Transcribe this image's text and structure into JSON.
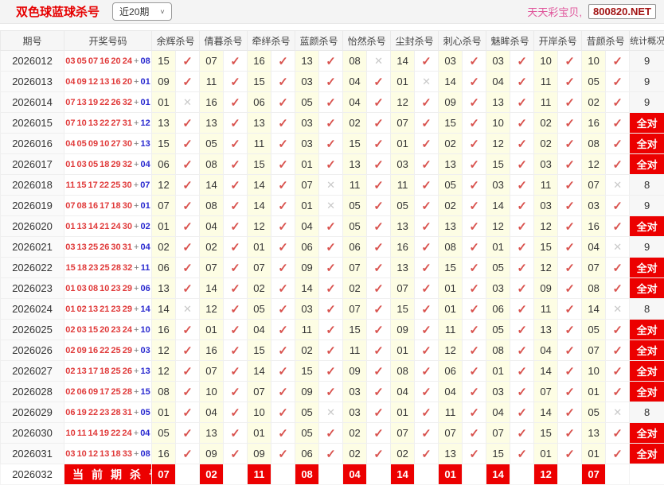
{
  "topbar": {
    "title": "双色球蓝球杀号",
    "range_value": "近20期",
    "chevron": "˅",
    "site_name": "天天彩宝贝,",
    "site_domain": "800820.NET"
  },
  "colors": {
    "accent_red": "#ec0000",
    "title_red": "#e60000",
    "check_red": "#d9534f",
    "miss_gray": "#c9c9c9",
    "ball_red": "#e03a3a",
    "ball_blue": "#2b2bd0",
    "kill_cell_yellow": "#fdfde4"
  },
  "marks": {
    "hit": "✓",
    "miss": "✕"
  },
  "table": {
    "headers": {
      "period": "期号",
      "numbers": "开奖号码",
      "stat": "统计概况",
      "experts": [
        "余辉杀号",
        "倩暮杀号",
        "牵绊杀号",
        "蓝颜杀号",
        "怡然杀号",
        "尘封杀号",
        "刺心杀号",
        "魅眸杀号",
        "开岸杀号",
        "昔颜杀号"
      ]
    },
    "all_correct_label": "全对",
    "plus_sign": "+",
    "rows": [
      {
        "period": "2026012",
        "reds": "03 05 07 16 20 24",
        "blue": "08",
        "kills": [
          [
            "15",
            1
          ],
          [
            "07",
            1
          ],
          [
            "16",
            1
          ],
          [
            "13",
            1
          ],
          [
            "08",
            0
          ],
          [
            "14",
            1
          ],
          [
            "03",
            1
          ],
          [
            "03",
            1
          ],
          [
            "10",
            1
          ],
          [
            "10",
            1
          ]
        ],
        "stat": "9"
      },
      {
        "period": "2026013",
        "reds": "04 09 12 13 16 20",
        "blue": "01",
        "kills": [
          [
            "09",
            1
          ],
          [
            "11",
            1
          ],
          [
            "15",
            1
          ],
          [
            "03",
            1
          ],
          [
            "04",
            1
          ],
          [
            "01",
            0
          ],
          [
            "14",
            1
          ],
          [
            "04",
            1
          ],
          [
            "11",
            1
          ],
          [
            "05",
            1
          ]
        ],
        "stat": "9"
      },
      {
        "period": "2026014",
        "reds": "07 13 19 22 26 32",
        "blue": "01",
        "kills": [
          [
            "01",
            0
          ],
          [
            "16",
            1
          ],
          [
            "06",
            1
          ],
          [
            "05",
            1
          ],
          [
            "04",
            1
          ],
          [
            "12",
            1
          ],
          [
            "09",
            1
          ],
          [
            "13",
            1
          ],
          [
            "11",
            1
          ],
          [
            "02",
            1
          ]
        ],
        "stat": "9"
      },
      {
        "period": "2026015",
        "reds": "07 10 13 22 27 31",
        "blue": "12",
        "kills": [
          [
            "13",
            1
          ],
          [
            "13",
            1
          ],
          [
            "13",
            1
          ],
          [
            "03",
            1
          ],
          [
            "02",
            1
          ],
          [
            "07",
            1
          ],
          [
            "15",
            1
          ],
          [
            "10",
            1
          ],
          [
            "02",
            1
          ],
          [
            "16",
            1
          ]
        ],
        "stat": "全对"
      },
      {
        "period": "2026016",
        "reds": "04 05 09 10 27 30",
        "blue": "13",
        "kills": [
          [
            "15",
            1
          ],
          [
            "05",
            1
          ],
          [
            "11",
            1
          ],
          [
            "03",
            1
          ],
          [
            "15",
            1
          ],
          [
            "01",
            1
          ],
          [
            "02",
            1
          ],
          [
            "12",
            1
          ],
          [
            "02",
            1
          ],
          [
            "08",
            1
          ]
        ],
        "stat": "全对"
      },
      {
        "period": "2026017",
        "reds": "01 03 05 18 29 32",
        "blue": "04",
        "kills": [
          [
            "06",
            1
          ],
          [
            "08",
            1
          ],
          [
            "15",
            1
          ],
          [
            "01",
            1
          ],
          [
            "13",
            1
          ],
          [
            "03",
            1
          ],
          [
            "13",
            1
          ],
          [
            "15",
            1
          ],
          [
            "03",
            1
          ],
          [
            "12",
            1
          ]
        ],
        "stat": "全对"
      },
      {
        "period": "2026018",
        "reds": "11 15 17 22 25 30",
        "blue": "07",
        "kills": [
          [
            "12",
            1
          ],
          [
            "14",
            1
          ],
          [
            "14",
            1
          ],
          [
            "07",
            0
          ],
          [
            "11",
            1
          ],
          [
            "11",
            1
          ],
          [
            "05",
            1
          ],
          [
            "03",
            1
          ],
          [
            "11",
            1
          ],
          [
            "07",
            0
          ]
        ],
        "stat": "8"
      },
      {
        "period": "2026019",
        "reds": "07 08 16 17 18 30",
        "blue": "01",
        "kills": [
          [
            "07",
            1
          ],
          [
            "08",
            1
          ],
          [
            "14",
            1
          ],
          [
            "01",
            0
          ],
          [
            "05",
            1
          ],
          [
            "05",
            1
          ],
          [
            "02",
            1
          ],
          [
            "14",
            1
          ],
          [
            "03",
            1
          ],
          [
            "03",
            1
          ]
        ],
        "stat": "9"
      },
      {
        "period": "2026020",
        "reds": "01 13 14 21 24 30",
        "blue": "02",
        "kills": [
          [
            "01",
            1
          ],
          [
            "04",
            1
          ],
          [
            "12",
            1
          ],
          [
            "04",
            1
          ],
          [
            "05",
            1
          ],
          [
            "13",
            1
          ],
          [
            "13",
            1
          ],
          [
            "12",
            1
          ],
          [
            "12",
            1
          ],
          [
            "16",
            1
          ]
        ],
        "stat": "全对"
      },
      {
        "period": "2026021",
        "reds": "03 13 25 26 30 31",
        "blue": "04",
        "kills": [
          [
            "02",
            1
          ],
          [
            "02",
            1
          ],
          [
            "01",
            1
          ],
          [
            "06",
            1
          ],
          [
            "06",
            1
          ],
          [
            "16",
            1
          ],
          [
            "08",
            1
          ],
          [
            "01",
            1
          ],
          [
            "15",
            1
          ],
          [
            "04",
            0
          ]
        ],
        "stat": "9"
      },
      {
        "period": "2026022",
        "reds": "15 18 23 25 28 32",
        "blue": "11",
        "kills": [
          [
            "06",
            1
          ],
          [
            "07",
            1
          ],
          [
            "07",
            1
          ],
          [
            "09",
            1
          ],
          [
            "07",
            1
          ],
          [
            "13",
            1
          ],
          [
            "15",
            1
          ],
          [
            "05",
            1
          ],
          [
            "12",
            1
          ],
          [
            "07",
            1
          ]
        ],
        "stat": "全对"
      },
      {
        "period": "2026023",
        "reds": "01 03 08 10 23 29",
        "blue": "06",
        "kills": [
          [
            "13",
            1
          ],
          [
            "14",
            1
          ],
          [
            "02",
            1
          ],
          [
            "14",
            1
          ],
          [
            "02",
            1
          ],
          [
            "07",
            1
          ],
          [
            "01",
            1
          ],
          [
            "03",
            1
          ],
          [
            "09",
            1
          ],
          [
            "08",
            1
          ]
        ],
        "stat": "全对"
      },
      {
        "period": "2026024",
        "reds": "01 02 13 21 23 29",
        "blue": "14",
        "kills": [
          [
            "14",
            0
          ],
          [
            "12",
            1
          ],
          [
            "05",
            1
          ],
          [
            "03",
            1
          ],
          [
            "07",
            1
          ],
          [
            "15",
            1
          ],
          [
            "01",
            1
          ],
          [
            "06",
            1
          ],
          [
            "11",
            1
          ],
          [
            "14",
            0
          ]
        ],
        "stat": "8"
      },
      {
        "period": "2026025",
        "reds": "02 03 15 20 23 24",
        "blue": "10",
        "kills": [
          [
            "16",
            1
          ],
          [
            "01",
            1
          ],
          [
            "04",
            1
          ],
          [
            "11",
            1
          ],
          [
            "15",
            1
          ],
          [
            "09",
            1
          ],
          [
            "11",
            1
          ],
          [
            "05",
            1
          ],
          [
            "13",
            1
          ],
          [
            "05",
            1
          ]
        ],
        "stat": "全对"
      },
      {
        "period": "2026026",
        "reds": "02 09 16 22 25 29",
        "blue": "03",
        "kills": [
          [
            "12",
            1
          ],
          [
            "16",
            1
          ],
          [
            "15",
            1
          ],
          [
            "02",
            1
          ],
          [
            "11",
            1
          ],
          [
            "01",
            1
          ],
          [
            "12",
            1
          ],
          [
            "08",
            1
          ],
          [
            "04",
            1
          ],
          [
            "07",
            1
          ]
        ],
        "stat": "全对"
      },
      {
        "period": "2026027",
        "reds": "02 13 17 18 25 26",
        "blue": "13",
        "kills": [
          [
            "12",
            1
          ],
          [
            "07",
            1
          ],
          [
            "14",
            1
          ],
          [
            "15",
            1
          ],
          [
            "09",
            1
          ],
          [
            "08",
            1
          ],
          [
            "06",
            1
          ],
          [
            "01",
            1
          ],
          [
            "14",
            1
          ],
          [
            "10",
            1
          ]
        ],
        "stat": "全对"
      },
      {
        "period": "2026028",
        "reds": "02 06 09 17 25 28",
        "blue": "15",
        "kills": [
          [
            "08",
            1
          ],
          [
            "10",
            1
          ],
          [
            "07",
            1
          ],
          [
            "09",
            1
          ],
          [
            "03",
            1
          ],
          [
            "04",
            1
          ],
          [
            "04",
            1
          ],
          [
            "03",
            1
          ],
          [
            "07",
            1
          ],
          [
            "01",
            1
          ]
        ],
        "stat": "全对"
      },
      {
        "period": "2026029",
        "reds": "06 19 22 23 28 31",
        "blue": "05",
        "kills": [
          [
            "01",
            1
          ],
          [
            "04",
            1
          ],
          [
            "10",
            1
          ],
          [
            "05",
            0
          ],
          [
            "03",
            1
          ],
          [
            "01",
            1
          ],
          [
            "11",
            1
          ],
          [
            "04",
            1
          ],
          [
            "14",
            1
          ],
          [
            "05",
            0
          ]
        ],
        "stat": "8"
      },
      {
        "period": "2026030",
        "reds": "10 11 14 19 22 24",
        "blue": "04",
        "kills": [
          [
            "05",
            1
          ],
          [
            "13",
            1
          ],
          [
            "01",
            1
          ],
          [
            "05",
            1
          ],
          [
            "02",
            1
          ],
          [
            "07",
            1
          ],
          [
            "07",
            1
          ],
          [
            "07",
            1
          ],
          [
            "15",
            1
          ],
          [
            "13",
            1
          ]
        ],
        "stat": "全对"
      },
      {
        "period": "2026031",
        "reds": "03 10 12 13 18 33",
        "blue": "08",
        "kills": [
          [
            "16",
            1
          ],
          [
            "09",
            1
          ],
          [
            "09",
            1
          ],
          [
            "06",
            1
          ],
          [
            "02",
            1
          ],
          [
            "02",
            1
          ],
          [
            "13",
            1
          ],
          [
            "15",
            1
          ],
          [
            "01",
            1
          ],
          [
            "01",
            1
          ]
        ],
        "stat": "全对"
      }
    ],
    "current": {
      "period": "2026032",
      "label": "当前期杀号",
      "kills": [
        "07",
        "02",
        "11",
        "08",
        "04",
        "14",
        "01",
        "14",
        "12",
        "07"
      ]
    }
  }
}
